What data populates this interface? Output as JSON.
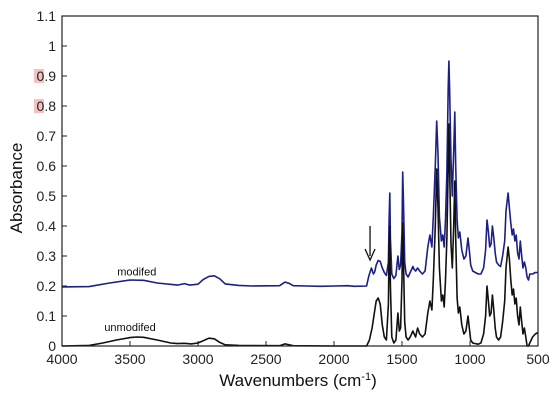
{
  "chart_data": {
    "type": "line",
    "xlabel": "Wavenumbers (cm",
    "xlabel_sup": "-1",
    "xlabel_end": ")",
    "ylabel": "Absorbance",
    "xlim": [
      4000,
      500
    ],
    "ylim": [
      0,
      1.1
    ],
    "x_reversed": true,
    "xticks": [
      "4000",
      "3500",
      "3000",
      "2500",
      "2000",
      "1500",
      "1000",
      "500"
    ],
    "xtick_values": [
      4000,
      3500,
      3000,
      2500,
      2000,
      1500,
      1000,
      500
    ],
    "yticks": [
      "0",
      "0.1",
      "0.2",
      "0.3",
      "0.4",
      "0.5",
      "0.6",
      "0.7",
      "0.8",
      "0.9",
      "1",
      "1.1"
    ],
    "ytick_values": [
      0,
      0.1,
      0.2,
      0.3,
      0.4,
      0.5,
      0.6,
      0.7,
      0.8,
      0.9,
      1,
      1.1
    ],
    "highlighted_yticks": [
      "0.9",
      "0.8"
    ],
    "grid": false,
    "annotations": [
      {
        "text": "modifed",
        "x": 3450,
        "y": 0.235
      },
      {
        "text": "unmodifed",
        "x": 3500,
        "y": 0.05
      },
      {
        "text": "arrow",
        "x": 1735,
        "y": 0.28
      }
    ],
    "series": [
      {
        "name": "modifed",
        "color": "#1c1f86",
        "points": [
          [
            4000,
            0.197
          ],
          [
            3800,
            0.198
          ],
          [
            3650,
            0.21
          ],
          [
            3500,
            0.22
          ],
          [
            3400,
            0.219
          ],
          [
            3300,
            0.21
          ],
          [
            3150,
            0.203
          ],
          [
            3100,
            0.208
          ],
          [
            3060,
            0.203
          ],
          [
            3000,
            0.206
          ],
          [
            2960,
            0.222
          ],
          [
            2920,
            0.232
          ],
          [
            2880,
            0.234
          ],
          [
            2840,
            0.224
          ],
          [
            2800,
            0.207
          ],
          [
            2700,
            0.202
          ],
          [
            2600,
            0.2
          ],
          [
            2400,
            0.201
          ],
          [
            2360,
            0.213
          ],
          [
            2330,
            0.209
          ],
          [
            2300,
            0.201
          ],
          [
            2200,
            0.2
          ],
          [
            2100,
            0.199
          ],
          [
            2000,
            0.2
          ],
          [
            1900,
            0.201
          ],
          [
            1850,
            0.199
          ],
          [
            1760,
            0.2
          ],
          [
            1745,
            0.232
          ],
          [
            1725,
            0.26
          ],
          [
            1710,
            0.24
          ],
          [
            1700,
            0.248
          ],
          [
            1690,
            0.27
          ],
          [
            1675,
            0.285
          ],
          [
            1660,
            0.282
          ],
          [
            1645,
            0.26
          ],
          [
            1630,
            0.245
          ],
          [
            1615,
            0.235
          ],
          [
            1600,
            0.28
          ],
          [
            1595,
            0.42
          ],
          [
            1590,
            0.51
          ],
          [
            1585,
            0.36
          ],
          [
            1575,
            0.24
          ],
          [
            1560,
            0.225
          ],
          [
            1545,
            0.235
          ],
          [
            1530,
            0.3
          ],
          [
            1520,
            0.255
          ],
          [
            1510,
            0.27
          ],
          [
            1500,
            0.38
          ],
          [
            1495,
            0.58
          ],
          [
            1490,
            0.49
          ],
          [
            1480,
            0.28
          ],
          [
            1470,
            0.24
          ],
          [
            1455,
            0.23
          ],
          [
            1440,
            0.245
          ],
          [
            1420,
            0.265
          ],
          [
            1410,
            0.255
          ],
          [
            1400,
            0.25
          ],
          [
            1385,
            0.26
          ],
          [
            1370,
            0.25
          ],
          [
            1350,
            0.24
          ],
          [
            1330,
            0.25
          ],
          [
            1310,
            0.33
          ],
          [
            1295,
            0.37
          ],
          [
            1280,
            0.33
          ],
          [
            1270,
            0.43
          ],
          [
            1255,
            0.6
          ],
          [
            1245,
            0.75
          ],
          [
            1235,
            0.64
          ],
          [
            1225,
            0.43
          ],
          [
            1210,
            0.35
          ],
          [
            1200,
            0.37
          ],
          [
            1190,
            0.33
          ],
          [
            1180,
            0.42
          ],
          [
            1170,
            0.58
          ],
          [
            1160,
            0.86
          ],
          [
            1155,
            0.95
          ],
          [
            1150,
            0.86
          ],
          [
            1140,
            0.62
          ],
          [
            1130,
            0.5
          ],
          [
            1120,
            0.65
          ],
          [
            1112,
            0.78
          ],
          [
            1105,
            0.6
          ],
          [
            1095,
            0.42
          ],
          [
            1085,
            0.36
          ],
          [
            1075,
            0.38
          ],
          [
            1060,
            0.32
          ],
          [
            1045,
            0.29
          ],
          [
            1030,
            0.3
          ],
          [
            1015,
            0.36
          ],
          [
            1005,
            0.32
          ],
          [
            995,
            0.27
          ],
          [
            980,
            0.25
          ],
          [
            960,
            0.245
          ],
          [
            940,
            0.24
          ],
          [
            920,
            0.24
          ],
          [
            900,
            0.26
          ],
          [
            885,
            0.32
          ],
          [
            875,
            0.42
          ],
          [
            865,
            0.38
          ],
          [
            855,
            0.33
          ],
          [
            845,
            0.34
          ],
          [
            835,
            0.4
          ],
          [
            825,
            0.36
          ],
          [
            815,
            0.31
          ],
          [
            805,
            0.28
          ],
          [
            790,
            0.27
          ],
          [
            775,
            0.265
          ],
          [
            760,
            0.3
          ],
          [
            745,
            0.35
          ],
          [
            735,
            0.45
          ],
          [
            720,
            0.51
          ],
          [
            710,
            0.46
          ],
          [
            700,
            0.41
          ],
          [
            690,
            0.37
          ],
          [
            680,
            0.39
          ],
          [
            670,
            0.35
          ],
          [
            660,
            0.37
          ],
          [
            650,
            0.31
          ],
          [
            640,
            0.29
          ],
          [
            630,
            0.35
          ],
          [
            620,
            0.3
          ],
          [
            610,
            0.26
          ],
          [
            600,
            0.28
          ],
          [
            590,
            0.26
          ],
          [
            580,
            0.23
          ],
          [
            570,
            0.22
          ],
          [
            560,
            0.24
          ],
          [
            540,
            0.24
          ],
          [
            520,
            0.245
          ],
          [
            500,
            0.245
          ]
        ]
      },
      {
        "name": "unmodifed",
        "color": "#111111",
        "points": [
          [
            4000,
            0.0
          ],
          [
            3800,
            0.002
          ],
          [
            3700,
            0.01
          ],
          [
            3600,
            0.02
          ],
          [
            3500,
            0.028
          ],
          [
            3450,
            0.03
          ],
          [
            3400,
            0.029
          ],
          [
            3300,
            0.02
          ],
          [
            3200,
            0.01
          ],
          [
            3150,
            0.008
          ],
          [
            3100,
            0.009
          ],
          [
            3050,
            0.007
          ],
          [
            3000,
            0.01
          ],
          [
            2960,
            0.018
          ],
          [
            2920,
            0.026
          ],
          [
            2880,
            0.024
          ],
          [
            2840,
            0.012
          ],
          [
            2800,
            0.004
          ],
          [
            2700,
            0.002
          ],
          [
            2400,
            0.001
          ],
          [
            2360,
            0.007
          ],
          [
            2330,
            0.004
          ],
          [
            2300,
            0.001
          ],
          [
            2000,
            0.0
          ],
          [
            1850,
            0.0
          ],
          [
            1760,
            0.0
          ],
          [
            1740,
            0.02
          ],
          [
            1720,
            0.06
          ],
          [
            1700,
            0.12
          ],
          [
            1690,
            0.15
          ],
          [
            1675,
            0.16
          ],
          [
            1660,
            0.14
          ],
          [
            1645,
            0.07
          ],
          [
            1630,
            0.03
          ],
          [
            1615,
            0.02
          ],
          [
            1600,
            0.14
          ],
          [
            1595,
            0.32
          ],
          [
            1590,
            0.4
          ],
          [
            1585,
            0.2
          ],
          [
            1575,
            0.03
          ],
          [
            1560,
            0.01
          ],
          [
            1545,
            0.02
          ],
          [
            1530,
            0.11
          ],
          [
            1520,
            0.05
          ],
          [
            1510,
            0.06
          ],
          [
            1500,
            0.22
          ],
          [
            1495,
            0.41
          ],
          [
            1490,
            0.3
          ],
          [
            1480,
            0.08
          ],
          [
            1470,
            0.03
          ],
          [
            1455,
            0.02
          ],
          [
            1440,
            0.03
          ],
          [
            1420,
            0.05
          ],
          [
            1410,
            0.04
          ],
          [
            1400,
            0.03
          ],
          [
            1385,
            0.06
          ],
          [
            1370,
            0.04
          ],
          [
            1350,
            0.03
          ],
          [
            1330,
            0.04
          ],
          [
            1310,
            0.11
          ],
          [
            1295,
            0.15
          ],
          [
            1280,
            0.12
          ],
          [
            1270,
            0.22
          ],
          [
            1255,
            0.4
          ],
          [
            1245,
            0.59
          ],
          [
            1235,
            0.46
          ],
          [
            1225,
            0.26
          ],
          [
            1210,
            0.15
          ],
          [
            1200,
            0.17
          ],
          [
            1190,
            0.13
          ],
          [
            1180,
            0.22
          ],
          [
            1170,
            0.36
          ],
          [
            1160,
            0.6
          ],
          [
            1155,
            0.74
          ],
          [
            1150,
            0.6
          ],
          [
            1140,
            0.34
          ],
          [
            1130,
            0.26
          ],
          [
            1120,
            0.4
          ],
          [
            1112,
            0.55
          ],
          [
            1105,
            0.36
          ],
          [
            1095,
            0.16
          ],
          [
            1085,
            0.11
          ],
          [
            1075,
            0.13
          ],
          [
            1060,
            0.07
          ],
          [
            1045,
            0.04
          ],
          [
            1030,
            0.05
          ],
          [
            1015,
            0.1
          ],
          [
            1005,
            0.06
          ],
          [
            995,
            0.02
          ],
          [
            980,
            0.01
          ],
          [
            960,
            0.008
          ],
          [
            940,
            0.006
          ],
          [
            920,
            0.01
          ],
          [
            900,
            0.04
          ],
          [
            885,
            0.1
          ],
          [
            875,
            0.2
          ],
          [
            865,
            0.15
          ],
          [
            855,
            0.1
          ],
          [
            845,
            0.11
          ],
          [
            835,
            0.17
          ],
          [
            825,
            0.12
          ],
          [
            815,
            0.06
          ],
          [
            805,
            0.03
          ],
          [
            790,
            0.02
          ],
          [
            775,
            0.03
          ],
          [
            760,
            0.08
          ],
          [
            745,
            0.15
          ],
          [
            735,
            0.26
          ],
          [
            720,
            0.33
          ],
          [
            710,
            0.29
          ],
          [
            700,
            0.22
          ],
          [
            690,
            0.17
          ],
          [
            680,
            0.19
          ],
          [
            670,
            0.14
          ],
          [
            660,
            0.16
          ],
          [
            650,
            0.1
          ],
          [
            640,
            0.07
          ],
          [
            630,
            0.13
          ],
          [
            620,
            0.08
          ],
          [
            610,
            0.04
          ],
          [
            600,
            0.06
          ],
          [
            590,
            0.03
          ],
          [
            580,
            0.0
          ],
          [
            570,
            0.0
          ],
          [
            560,
            0.01
          ],
          [
            540,
            0.03
          ],
          [
            520,
            0.04
          ],
          [
            500,
            0.045
          ]
        ]
      }
    ]
  }
}
